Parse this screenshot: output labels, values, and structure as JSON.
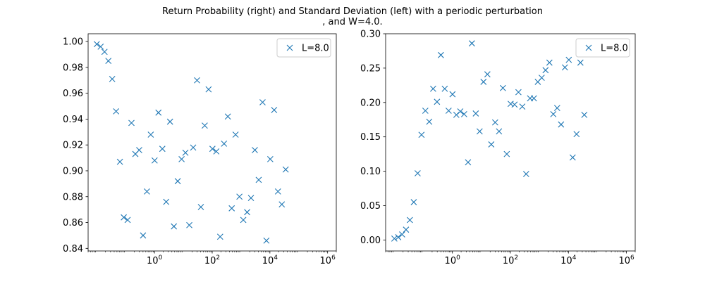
{
  "figure": {
    "title_line1": "Return Probability (right) and Standard Deviation (left) with a periodic perturbation",
    "title_line2": ", and W=4.0."
  },
  "colors": {
    "series": "#1f77b4",
    "axes": "#000000",
    "legend_border": "#cccccc"
  },
  "chart_data": [
    {
      "type": "scatter",
      "marker": "x",
      "xscale": "log",
      "xlim": [
        0.005,
        2000000
      ],
      "ylim": [
        0.838,
        1.006
      ],
      "xticks": [
        1,
        100,
        10000,
        1000000
      ],
      "xticklabels": [
        {
          "base": "10",
          "exp": "0"
        },
        {
          "base": "10",
          "exp": "2"
        },
        {
          "base": "10",
          "exp": "4"
        },
        {
          "base": "10",
          "exp": "6"
        }
      ],
      "yticks": [
        0.84,
        0.86,
        0.88,
        0.9,
        0.92,
        0.94,
        0.96,
        0.98,
        1.0
      ],
      "yticklabels": [
        "0.84",
        "0.86",
        "0.88",
        "0.90",
        "0.92",
        "0.94",
        "0.96",
        "0.98",
        "1.00"
      ],
      "legend": {
        "label": "L=8.0",
        "position": "top-right"
      },
      "series": [
        {
          "name": "L=8.0",
          "points": [
            [
              0.01,
              0.998
            ],
            [
              0.0136,
              0.996
            ],
            [
              0.0185,
              0.992
            ],
            [
              0.0252,
              0.985
            ],
            [
              0.0342,
              0.971
            ],
            [
              0.0466,
              0.946
            ],
            [
              0.0634,
              0.907
            ],
            [
              0.0862,
              0.864
            ],
            [
              0.117,
              0.862
            ],
            [
              0.159,
              0.937
            ],
            [
              0.217,
              0.913
            ],
            [
              0.295,
              0.916
            ],
            [
              0.401,
              0.85
            ],
            [
              0.546,
              0.884
            ],
            [
              0.742,
              0.928
            ],
            [
              1.01,
              0.908
            ],
            [
              1.37,
              0.945
            ],
            [
              1.87,
              0.917
            ],
            [
              2.54,
              0.876
            ],
            [
              3.46,
              0.938
            ],
            [
              4.7,
              0.857
            ],
            [
              6.39,
              0.892
            ],
            [
              8.7,
              0.909
            ],
            [
              11.8,
              0.914
            ],
            [
              16.1,
              0.858
            ],
            [
              21.9,
              0.918
            ],
            [
              29.8,
              0.97
            ],
            [
              40.5,
              0.872
            ],
            [
              55.1,
              0.935
            ],
            [
              75.0,
              0.963
            ],
            [
              102,
              0.917
            ],
            [
              139,
              0.915
            ],
            [
              189,
              0.849
            ],
            [
              257,
              0.921
            ],
            [
              349,
              0.942
            ],
            [
              475,
              0.871
            ],
            [
              646,
              0.928
            ],
            [
              879,
              0.88
            ],
            [
              1196,
              0.862
            ],
            [
              1626,
              0.868
            ],
            [
              2212,
              0.879
            ],
            [
              3009,
              0.916
            ],
            [
              4092,
              0.893
            ],
            [
              5566,
              0.953
            ],
            [
              7570,
              0.846
            ],
            [
              10297,
              0.909
            ],
            [
              14006,
              0.947
            ],
            [
              19050,
              0.884
            ],
            [
              25911,
              0.874
            ],
            [
              35244,
              0.901
            ]
          ]
        }
      ]
    },
    {
      "type": "scatter",
      "marker": "x",
      "xscale": "log",
      "xlim": [
        0.005,
        2000000
      ],
      "ylim": [
        -0.016,
        0.3
      ],
      "xticks": [
        1,
        100,
        10000,
        1000000
      ],
      "xticklabels": [
        {
          "base": "10",
          "exp": "0"
        },
        {
          "base": "10",
          "exp": "2"
        },
        {
          "base": "10",
          "exp": "4"
        },
        {
          "base": "10",
          "exp": "6"
        }
      ],
      "yticks": [
        0.0,
        0.05,
        0.1,
        0.15,
        0.2,
        0.25,
        0.3
      ],
      "yticklabels": [
        "0.00",
        "0.05",
        "0.10",
        "0.15",
        "0.20",
        "0.25",
        "0.30"
      ],
      "legend": {
        "label": "L=8.0",
        "position": "top-right"
      },
      "series": [
        {
          "name": "L=8.0",
          "points": [
            [
              0.01,
              0.002
            ],
            [
              0.0136,
              0.004
            ],
            [
              0.0185,
              0.008
            ],
            [
              0.0252,
              0.015
            ],
            [
              0.0342,
              0.029
            ],
            [
              0.0466,
              0.055
            ],
            [
              0.0634,
              0.097
            ],
            [
              0.0862,
              0.153
            ],
            [
              0.117,
              0.188
            ],
            [
              0.159,
              0.172
            ],
            [
              0.217,
              0.22
            ],
            [
              0.295,
              0.201
            ],
            [
              0.401,
              0.269
            ],
            [
              0.546,
              0.22
            ],
            [
              0.742,
              0.188
            ],
            [
              1.01,
              0.212
            ],
            [
              1.37,
              0.182
            ],
            [
              1.87,
              0.187
            ],
            [
              2.54,
              0.183
            ],
            [
              3.46,
              0.113
            ],
            [
              4.7,
              0.286
            ],
            [
              6.39,
              0.184
            ],
            [
              8.7,
              0.158
            ],
            [
              11.8,
              0.23
            ],
            [
              16.1,
              0.241
            ],
            [
              21.9,
              0.139
            ],
            [
              29.8,
              0.171
            ],
            [
              40.5,
              0.158
            ],
            [
              55.1,
              0.221
            ],
            [
              75.0,
              0.125
            ],
            [
              102,
              0.198
            ],
            [
              139,
              0.197
            ],
            [
              189,
              0.215
            ],
            [
              257,
              0.194
            ],
            [
              349,
              0.096
            ],
            [
              475,
              0.206
            ],
            [
              646,
              0.206
            ],
            [
              879,
              0.23
            ],
            [
              1196,
              0.236
            ],
            [
              1626,
              0.247
            ],
            [
              2212,
              0.258
            ],
            [
              3009,
              0.183
            ],
            [
              4092,
              0.192
            ],
            [
              5566,
              0.168
            ],
            [
              7570,
              0.251
            ],
            [
              10297,
              0.262
            ],
            [
              14006,
              0.12
            ],
            [
              19050,
              0.154
            ],
            [
              25911,
              0.258
            ],
            [
              35244,
              0.182
            ]
          ]
        }
      ]
    }
  ]
}
